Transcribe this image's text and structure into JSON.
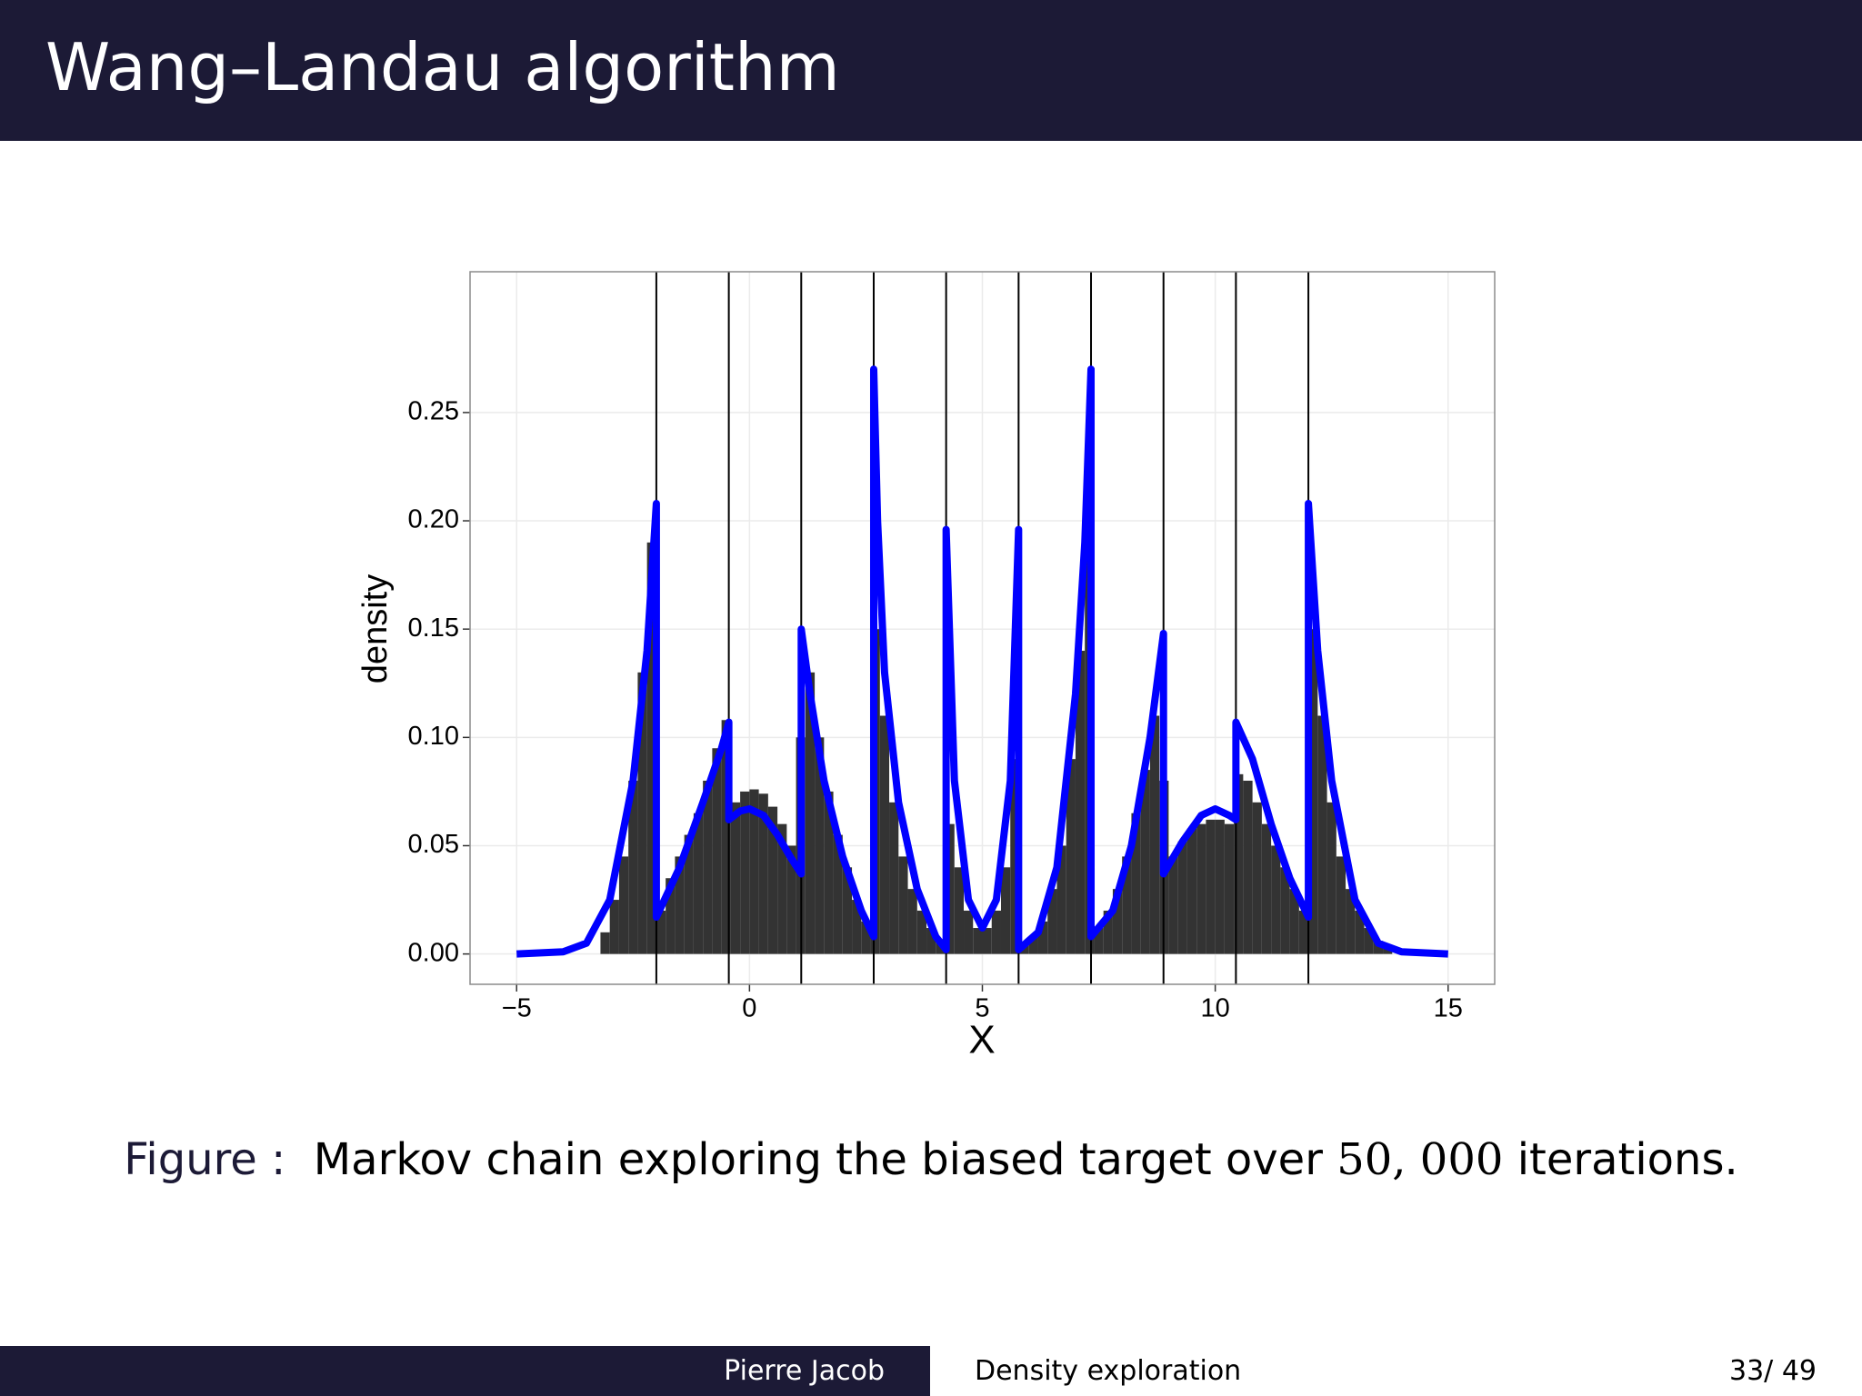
{
  "header": {
    "title": "Wang–Landau algorithm"
  },
  "chart_data": {
    "type": "histogram",
    "xlabel": "X",
    "ylabel": "density",
    "xlim": [
      -6,
      16
    ],
    "ylim": [
      -0.014,
      0.315
    ],
    "xticks": [
      {
        "value": -5,
        "label": "−5"
      },
      0,
      5,
      10,
      15
    ],
    "yticks": [
      {
        "value": 0,
        "label": "0.00"
      },
      {
        "value": 0.05,
        "label": "0.05"
      },
      {
        "value": 0.1,
        "label": "0.10"
      },
      0.15,
      {
        "value": 0.2,
        "label": "0.20"
      },
      0.25
    ],
    "grid": true,
    "color": "#333333",
    "bins": [
      -3.2,
      -3.0,
      -2.8,
      -2.6,
      -2.4,
      -2.2,
      -2.0,
      -1.8,
      -1.6,
      -1.4,
      -1.2,
      -1.0,
      -0.8,
      -0.6,
      -0.4,
      -0.2,
      0,
      0.2,
      0.4,
      0.6,
      0.8,
      1.0,
      1.2,
      1.4,
      1.6,
      1.8,
      2.0,
      2.2,
      2.4,
      2.6,
      2.8,
      3.0,
      3.2,
      3.4,
      3.6,
      3.8,
      4.0,
      4.2,
      4.4,
      4.6,
      4.8,
      5.0,
      5.2,
      5.4,
      5.6,
      5.8,
      6.0,
      6.2,
      6.4,
      6.6,
      6.8,
      7.0,
      7.2,
      7.4,
      7.6,
      7.8,
      8.0,
      8.2,
      8.4,
      8.6,
      8.8,
      9.0,
      9.2,
      9.4,
      9.6,
      9.8,
      10.0,
      10.2,
      10.4,
      10.6,
      10.8,
      11.0,
      11.2,
      11.4,
      11.6,
      11.8,
      12.0,
      12.2,
      12.4,
      12.6,
      12.8,
      13.0,
      13.2,
      13.4,
      13.6,
      13.8
    ],
    "counts": [
      0.01,
      0.025,
      0.045,
      0.08,
      0.13,
      0.19,
      0.02,
      0.035,
      0.045,
      0.055,
      0.065,
      0.08,
      0.095,
      0.108,
      0.07,
      0.075,
      0.076,
      0.074,
      0.068,
      0.06,
      0.05,
      0.1,
      0.13,
      0.1,
      0.075,
      0.055,
      0.04,
      0.025,
      0.015,
      0.15,
      0.11,
      0.07,
      0.045,
      0.03,
      0.02,
      0.012,
      0.006,
      0.06,
      0.04,
      0.02,
      0.012,
      0.012,
      0.02,
      0.04,
      0.09,
      0.005,
      0.008,
      0.015,
      0.03,
      0.05,
      0.09,
      0.14,
      0.2,
      0.012,
      0.02,
      0.03,
      0.045,
      0.065,
      0.085,
      0.11,
      0.08,
      0.045,
      0.052,
      0.058,
      0.06,
      0.062,
      0.062,
      0.06,
      0.083,
      0.08,
      0.07,
      0.06,
      0.05,
      0.04,
      0.03,
      0.02,
      0.15,
      0.11,
      0.07,
      0.045,
      0.03,
      0.02,
      0.012,
      0.006,
      0.003
    ],
    "vlines": [
      -2,
      -0.444,
      1.111,
      2.667,
      4.222,
      5.778,
      7.333,
      8.889,
      10.444,
      12
    ],
    "vline_color": "#000000",
    "curve": {
      "color": "#0000ff",
      "x": [
        -5,
        -4,
        -3.5,
        -3,
        -2.5,
        -2.2,
        -2,
        -2,
        -1.5,
        -1,
        -0.6,
        -0.444,
        -0.444,
        -0.2,
        0,
        0.3,
        0.6,
        0.9,
        1.111,
        1.111,
        1.3,
        1.6,
        2,
        2.4,
        2.667,
        2.667,
        2.75,
        2.9,
        3.2,
        3.6,
        4,
        4.222,
        4.222,
        4.4,
        4.7,
        5,
        5.3,
        5.6,
        5.778,
        5.778,
        6.2,
        6.6,
        7,
        7.2,
        7.333,
        7.333,
        7.8,
        8.2,
        8.6,
        8.889,
        8.889,
        9.3,
        9.7,
        10,
        10.3,
        10.444,
        10.444,
        10.8,
        11.2,
        11.6,
        12,
        12,
        12.2,
        12.5,
        13,
        13.5,
        14,
        15
      ],
      "y": [
        0,
        0.001,
        0.005,
        0.025,
        0.08,
        0.14,
        0.208,
        0.017,
        0.04,
        0.07,
        0.095,
        0.107,
        0.062,
        0.066,
        0.067,
        0.064,
        0.055,
        0.044,
        0.037,
        0.15,
        0.12,
        0.08,
        0.045,
        0.02,
        0.008,
        0.27,
        0.2,
        0.13,
        0.07,
        0.03,
        0.008,
        0.002,
        0.196,
        0.08,
        0.025,
        0.012,
        0.025,
        0.08,
        0.196,
        0.002,
        0.01,
        0.04,
        0.12,
        0.19,
        0.27,
        0.008,
        0.02,
        0.05,
        0.1,
        0.148,
        0.037,
        0.052,
        0.064,
        0.067,
        0.064,
        0.062,
        0.107,
        0.09,
        0.06,
        0.035,
        0.017,
        0.208,
        0.14,
        0.08,
        0.025,
        0.005,
        0.001,
        0
      ]
    }
  },
  "caption": {
    "label": "Figure :",
    "text": "Markov chain exploring the biased target over",
    "math": "50, 000",
    "tail": "iterations."
  },
  "footer": {
    "author": "Pierre Jacob",
    "section": "Density exploration",
    "page": "33/ 49"
  }
}
